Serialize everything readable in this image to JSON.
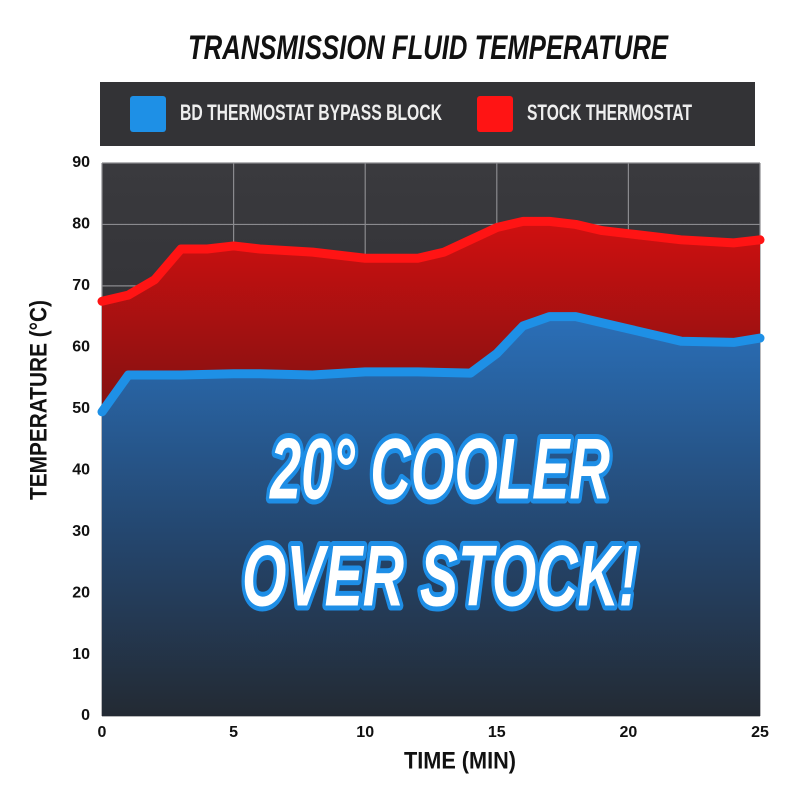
{
  "chart_data": {
    "type": "area",
    "title": "TRANSMISSION FLUID TEMPERATURE",
    "x_label": "TIME (MIN)",
    "y_label": "TEMPERATURE (°C)",
    "x": [
      0,
      1,
      2,
      3,
      4,
      5,
      6,
      8,
      10,
      12,
      13,
      14,
      15,
      16,
      17,
      18,
      19,
      20,
      22,
      24,
      25
    ],
    "series": [
      {
        "name": "BD THERMOSTAT BYPASS BLOCK",
        "color": "#1e90e6",
        "values": [
          49.5,
          55.5,
          55.5,
          55.5,
          55.6,
          55.7,
          55.7,
          55.5,
          56,
          56,
          55.9,
          55.8,
          59,
          63.5,
          65,
          65,
          64,
          63,
          61,
          60.8,
          61.5
        ]
      },
      {
        "name": "STOCK THERMOSTAT",
        "color": "#ff1414",
        "values": [
          67.5,
          68.5,
          71,
          76,
          76,
          76.5,
          76,
          75.5,
          74.5,
          74.5,
          75.5,
          77.5,
          79.5,
          80.5,
          80.5,
          80,
          79,
          78.5,
          77.5,
          77,
          77.5
        ]
      }
    ],
    "annotation": [
      "20° COOLER",
      "OVER STOCK!"
    ],
    "xlim": [
      0,
      25
    ],
    "xticks": [
      0,
      5,
      10,
      15,
      20,
      25
    ],
    "ylim": [
      0,
      90
    ],
    "yticks": [
      0,
      10,
      20,
      30,
      40,
      50,
      60,
      70,
      80,
      90
    ],
    "grid": true,
    "legend": "top"
  }
}
